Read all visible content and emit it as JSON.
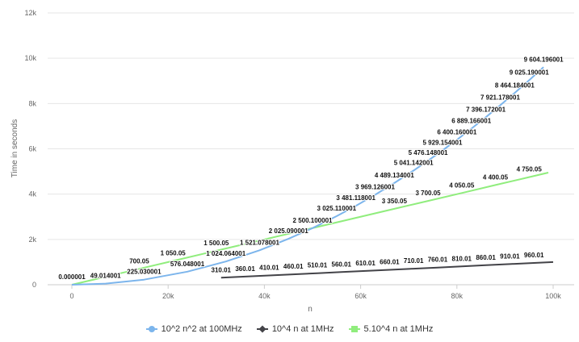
{
  "chart_data": {
    "type": "line",
    "xlabel": "n",
    "ylabel": "Time in seconds",
    "xlim": [
      0,
      100000
    ],
    "ylim": [
      0,
      12000
    ],
    "x_ticks": [
      0,
      20000,
      40000,
      60000,
      80000,
      100000
    ],
    "x_tick_labels": [
      "0",
      "20k",
      "40k",
      "60k",
      "80k",
      "100k"
    ],
    "y_ticks": [
      0,
      2000,
      4000,
      6000,
      8000,
      10000,
      12000
    ],
    "y_tick_labels": [
      "0",
      "2k",
      "4k",
      "6k",
      "8k",
      "10k",
      "12k"
    ],
    "grid": true,
    "legend_position": "bottom",
    "series": [
      {
        "name": "10^2 n^2 at 100MHz",
        "color": "#7cb5ec",
        "marker": "circle",
        "x": [
          1,
          7001,
          15001,
          24001,
          32001,
          39001,
          45001,
          50001,
          55001,
          59001,
          63001,
          67001,
          71001,
          74001,
          77001,
          80001,
          83001,
          86001,
          89001,
          92001,
          95001,
          98001
        ],
        "values": [
          1e-06,
          49.014001,
          225.030001,
          576.048001,
          1024.064001,
          1521.078001,
          2025.090001,
          2500.100001,
          3025.110001,
          3481.118001,
          3969.126001,
          4489.134001,
          5041.142001,
          5476.148001,
          5929.154001,
          6400.160001,
          6889.166001,
          7396.172001,
          7921.178001,
          8464.184001,
          9025.190001,
          9604.196001
        ],
        "labels": [
          "0.000001",
          "49.014001",
          "225.030001",
          "576.048001",
          "1 024.064001",
          "1 521.078001",
          "2 025.090001",
          "2 500.100001",
          "3 025.110001",
          "3 481.118001",
          "3 969.126001",
          "4 489.134001",
          "5 041.142001",
          "5 476.148001",
          "5 929.154001",
          "6 400.160001",
          "6 889.166001",
          "7 396.172001",
          "7 921.178001",
          "8 464.184001",
          "9 025.190001",
          "9 604.196001"
        ]
      },
      {
        "name": "10^4 n at 1MHz",
        "color": "#434348",
        "marker": "diamond",
        "x": [
          31001,
          36001,
          41001,
          46001,
          51001,
          56001,
          61001,
          66001,
          71001,
          76001,
          81001,
          86001,
          91001,
          96001,
          100000
        ],
        "values": [
          310.01,
          360.01,
          410.01,
          460.01,
          510.01,
          560.01,
          610.01,
          660.01,
          710.01,
          760.01,
          810.01,
          860.01,
          910.01,
          960.01,
          1000
        ],
        "labels": [
          "310.01",
          "360.01",
          "410.01",
          "460.01",
          "510.01",
          "560.01",
          "610.01",
          "660.01",
          "710.01",
          "760.01",
          "810.01",
          "860.01",
          "910.01",
          "960.01",
          ""
        ]
      },
      {
        "name": "5.10^4 n at 1MHz",
        "color": "#90ed7d",
        "marker": "square",
        "x": [
          1,
          14001,
          21001,
          30001,
          67001,
          74001,
          81001,
          88001,
          95001,
          99000
        ],
        "values": [
          0.05,
          700.05,
          1050.05,
          1500.05,
          3350.05,
          3700.05,
          4050.05,
          4400.05,
          4750.05,
          4950
        ],
        "labels": [
          "",
          "700.05",
          "1 050.05",
          "1 500.05",
          "3 350.05",
          "3 700.05",
          "4 050.05",
          "4 400.05",
          "4 750.05",
          ""
        ]
      }
    ]
  }
}
